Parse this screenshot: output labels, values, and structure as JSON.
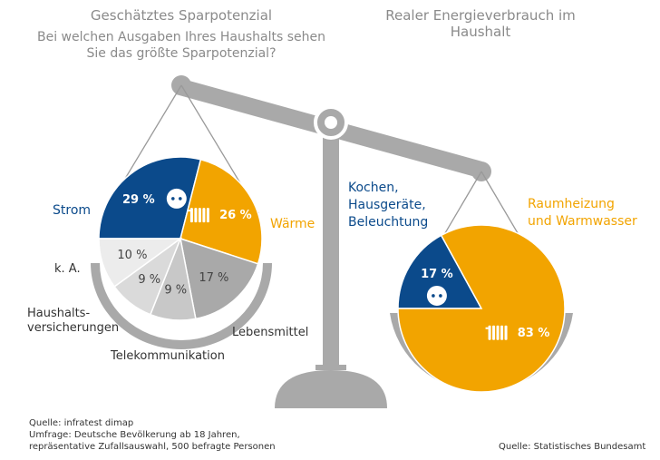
{
  "left": {
    "title": "Geschätztes Sparpotenzial",
    "subtitle": "Bei welchen Ausgaben Ihres Haushalts sehen Sie das größte Sparpotenzial?"
  },
  "right": {
    "title": "Realer Energieverbrauch im Haushalt"
  },
  "chart_data": [
    {
      "type": "pie",
      "title": "Geschätztes Sparpotenzial",
      "slices": [
        {
          "label": "Strom",
          "value": 29,
          "text": "29 %",
          "color": "#0b4a8b",
          "icon": "power-socket-icon"
        },
        {
          "label": "Wärme",
          "value": 26,
          "text": "26 %",
          "color": "#f2a400",
          "icon": "radiator-icon"
        },
        {
          "label": "Lebensmittel",
          "value": 17,
          "text": "17 %",
          "color": "#a9a9a9"
        },
        {
          "label": "Telekommunikation",
          "value": 9,
          "text": "9 %",
          "color": "#c8c8c8"
        },
        {
          "label": "Haushalts- versicherungen",
          "value": 9,
          "text": "9 %",
          "color": "#dadada"
        },
        {
          "label": "k. A.",
          "value": 10,
          "text": "10 %",
          "color": "#ececec"
        }
      ]
    },
    {
      "type": "pie",
      "title": "Realer Energieverbrauch im Haushalt",
      "slices": [
        {
          "label": "Kochen, Hausgeräte, Beleuchtung",
          "value": 17,
          "text": "17 %",
          "color": "#0b4a8b",
          "icon": "power-socket-icon"
        },
        {
          "label": "Raumheizung und Warmwasser",
          "value": 83,
          "text": "83 %",
          "color": "#f2a400",
          "icon": "radiator-icon"
        }
      ]
    }
  ],
  "labels": {
    "strom": "Strom",
    "waerme": "Wärme",
    "ka": "k. A.",
    "haus1": "Haushalts-",
    "haus2": "versicherungen",
    "tele": "Telekommunikation",
    "lebens": "Lebensmittel",
    "kochen1": "Kochen,",
    "kochen2": "Hausgeräte,",
    "kochen3": "Beleuchtung",
    "raum1": "Raumheizung",
    "raum2": "und Warmwasser"
  },
  "sources": {
    "l1": "Quelle: infratest dimap",
    "l2": "Umfrage: Deutsche Bevölkerung ab 18 Jahren,",
    "l3": "repräsentative Zufallsauswahl, 500 befragte Personen",
    "r": "Quelle: Statistisches Bundesamt"
  }
}
